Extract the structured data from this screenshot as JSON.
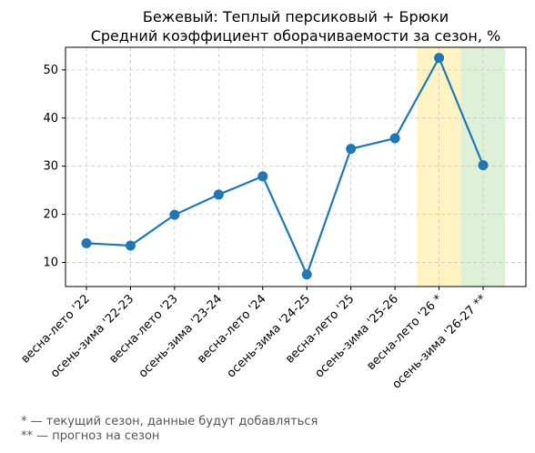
{
  "chart_data": {
    "type": "line",
    "title": "Бежевый: Теплый персиковый + Брюки",
    "subtitle": "Средний коэффициент оборачиваемости за сезон, %",
    "xlabel": "",
    "ylabel": "",
    "categories": [
      "весна-лето '22",
      "осень-зима '22-23",
      "весна-лето '23",
      "осень-зима '23-24",
      "весна-лето '24",
      "осень-зима '24-25",
      "весна-лето '25",
      "осень-зима '25-26",
      "весна-лето '26 *",
      "осень-зима '26-27 **"
    ],
    "series": [
      {
        "values": [
          14.0,
          13.5,
          19.9,
          24.1,
          27.9,
          7.5,
          33.6,
          35.8,
          52.5,
          30.2
        ]
      }
    ],
    "ylim": [
      5.0,
      54.7
    ],
    "yticks": [
      10,
      20,
      30,
      40,
      50
    ],
    "grid": true,
    "highlights": [
      {
        "category": "весна-лето '26 *",
        "color": "#fff3c4"
      },
      {
        "category": "осень-зима '26-27 **",
        "color": "#dff0d8"
      }
    ],
    "line_color": "#1f77b4"
  },
  "footnotes": {
    "current": "* — текущий сезон, данные будут добавляться",
    "forecast": "** — прогноз на сезон"
  }
}
